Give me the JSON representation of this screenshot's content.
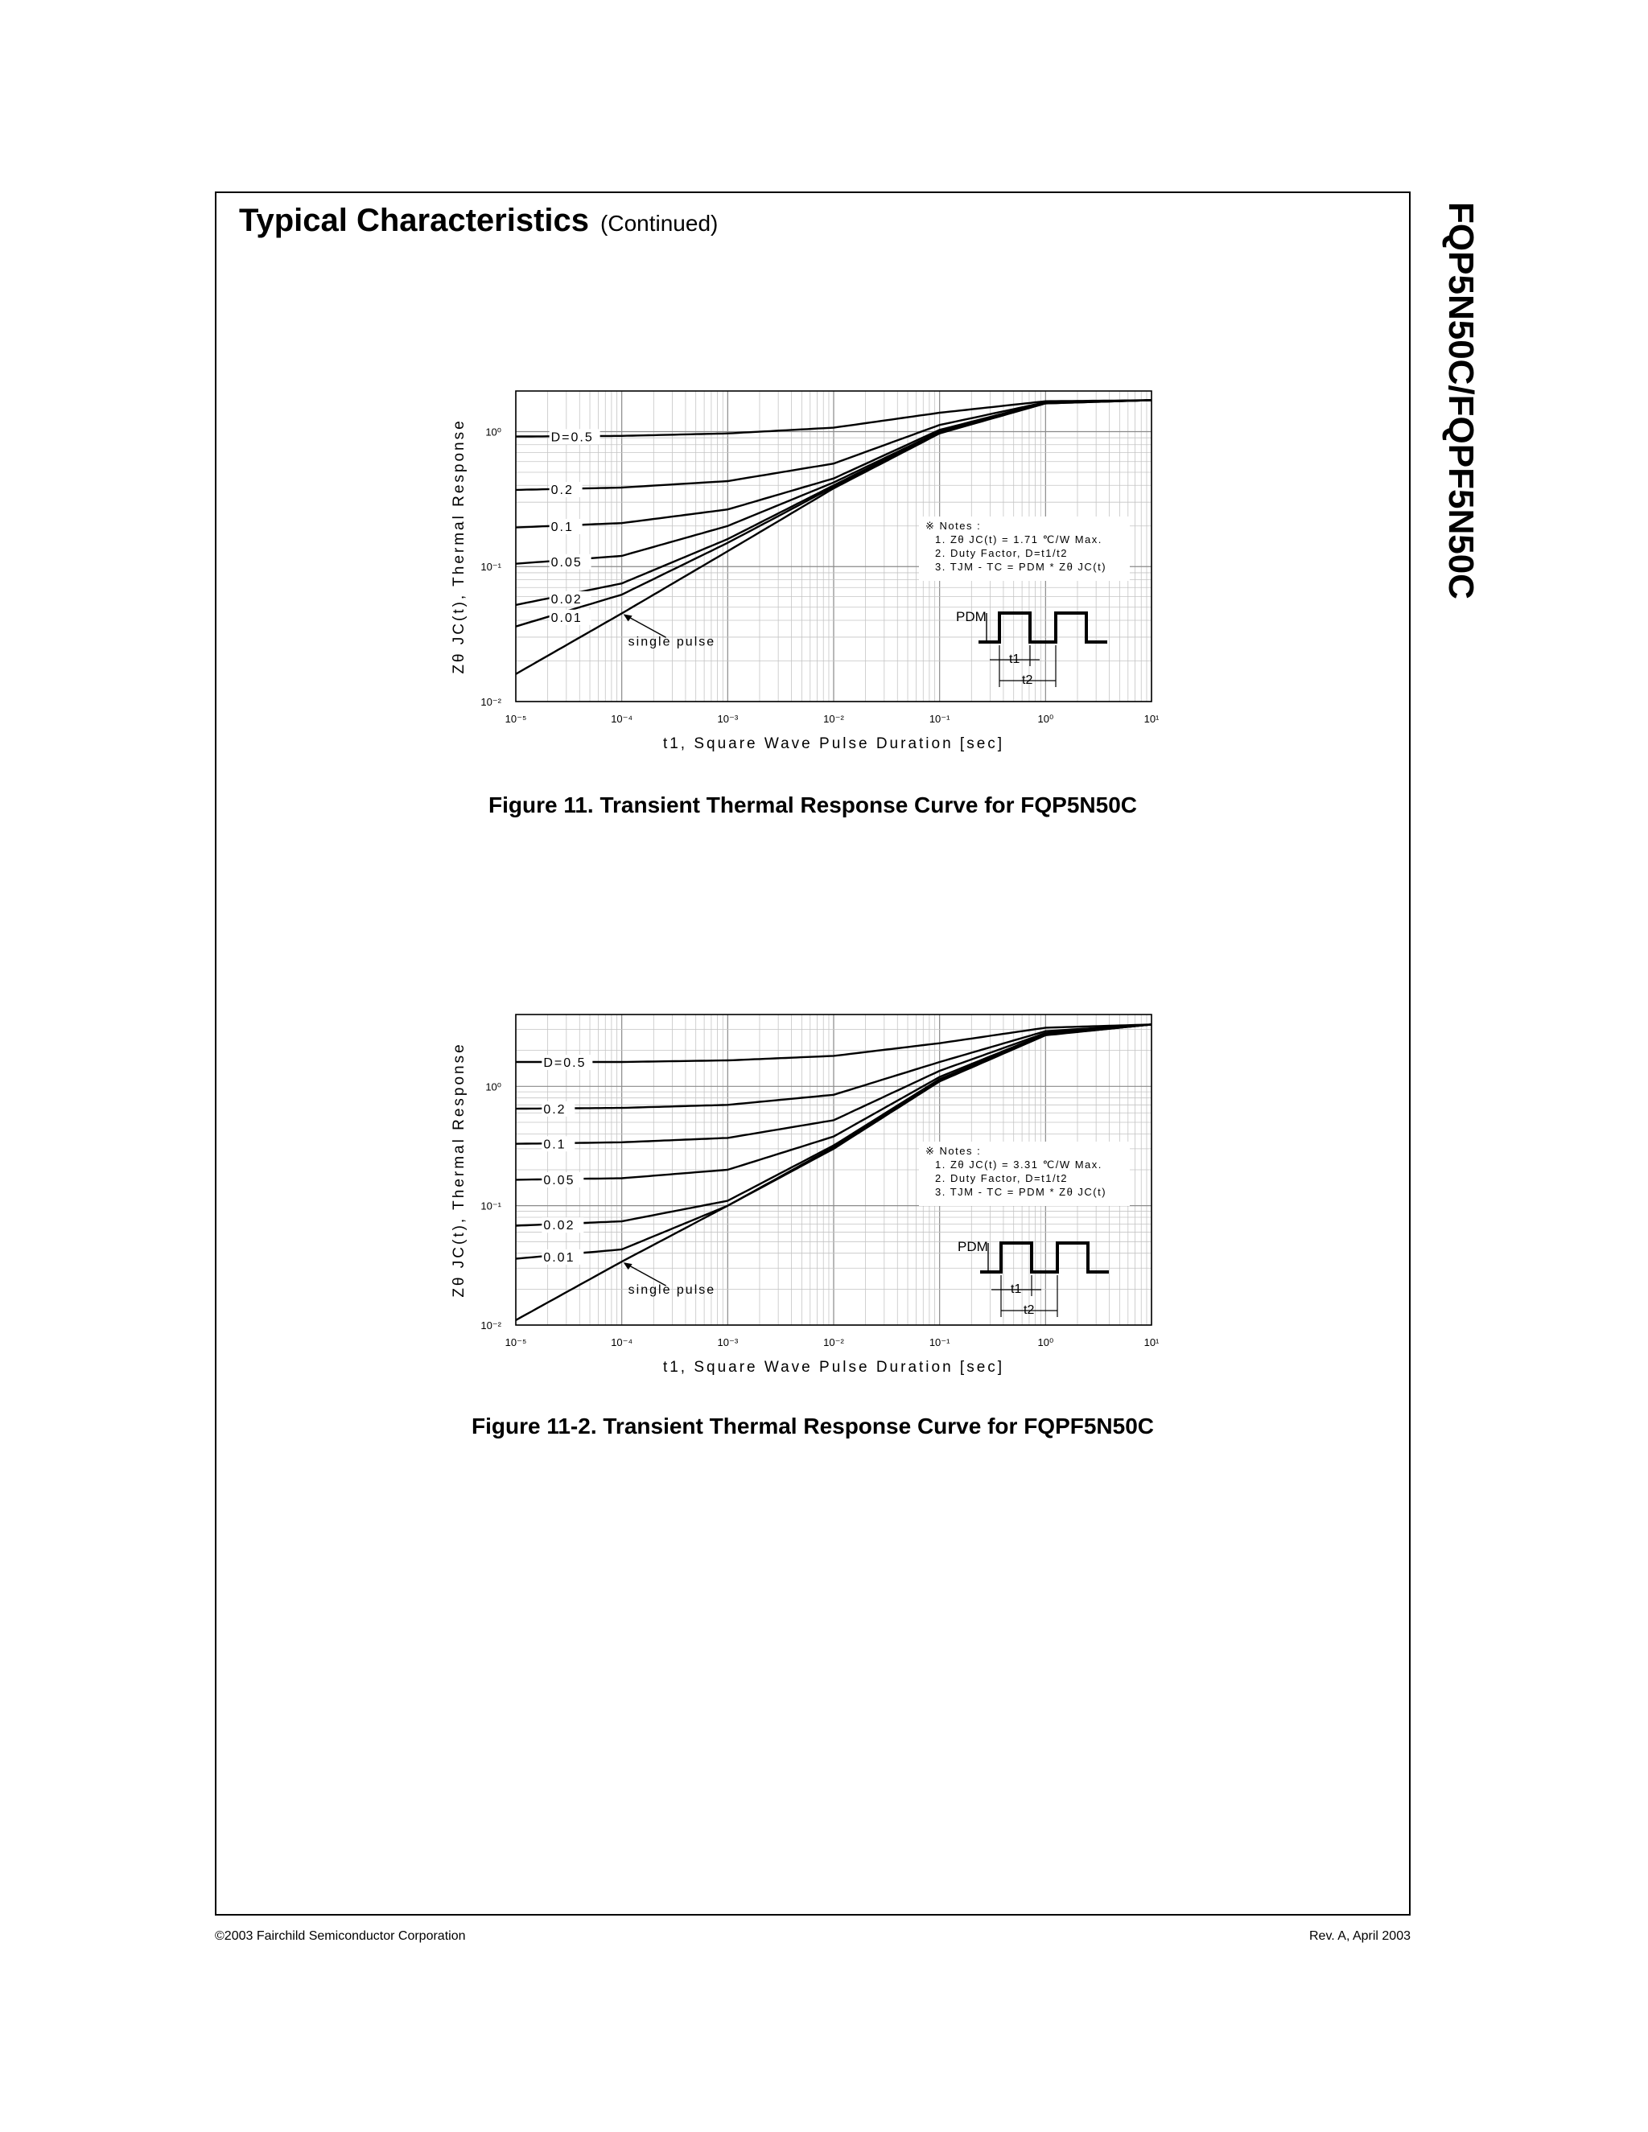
{
  "page": {
    "section_title": "Typical Characteristics",
    "section_subtitle": "(Continued)",
    "side_title": "FQP5N50C/FQPF5N50C",
    "footer_left": "©2003 Fairchild Semiconductor Corporation",
    "footer_right": "Rev. A, April 2003"
  },
  "captions": [
    "Figure 11. Transient Thermal Response Curve for FQP5N50C",
    "Figure 11-2. Transient Thermal Response Curve for FQPF5N50C"
  ],
  "chart_data": [
    {
      "type": "line",
      "x_scale": "log",
      "y_scale": "log",
      "xlim": [
        1e-05,
        10
      ],
      "ylim": [
        0.01,
        2
      ],
      "grid": true,
      "xlabel": "t1, Square Wave Pulse Duration [sec]",
      "ylabel": "Zθ JC(t), Thermal Response",
      "x_ticks": [
        "10⁻⁵",
        "10⁻⁴",
        "10⁻³",
        "10⁻²",
        "10⁻¹",
        "10⁰",
        "10¹"
      ],
      "y_ticks": [
        "10⁻²",
        "10⁻¹",
        "10⁰"
      ],
      "notes": [
        "※  Notes :",
        "1. Zθ JC(t) = 1.71 ℃/W Max.",
        "2. Duty Factor, D=t1/t2",
        "3. TJM - TC = PDM * Zθ JC(t)"
      ],
      "pulse_labels": {
        "pdm": "PDM",
        "t1": "t1",
        "t2": "t2"
      },
      "series": [
        {
          "name": "D=0.5",
          "points": [
            [
              1e-05,
              0.92
            ],
            [
              0.0001,
              0.93
            ],
            [
              0.001,
              0.97
            ],
            [
              0.01,
              1.07
            ],
            [
              0.1,
              1.38
            ],
            [
              1,
              1.68
            ],
            [
              10,
              1.71
            ]
          ]
        },
        {
          "name": "0.2",
          "points": [
            [
              1e-05,
              0.37
            ],
            [
              0.0001,
              0.385
            ],
            [
              0.001,
              0.43
            ],
            [
              0.01,
              0.58
            ],
            [
              0.1,
              1.12
            ],
            [
              1,
              1.65
            ],
            [
              10,
              1.71
            ]
          ]
        },
        {
          "name": "0.1",
          "points": [
            [
              1e-05,
              0.195
            ],
            [
              0.0001,
              0.21
            ],
            [
              0.001,
              0.265
            ],
            [
              0.01,
              0.45
            ],
            [
              0.1,
              1.03
            ],
            [
              1,
              1.64
            ],
            [
              10,
              1.71
            ]
          ]
        },
        {
          "name": "0.05",
          "points": [
            [
              1e-05,
              0.105
            ],
            [
              0.0001,
              0.12
            ],
            [
              0.001,
              0.2
            ],
            [
              0.01,
              0.42
            ],
            [
              0.1,
              1.0
            ],
            [
              1,
              1.63
            ],
            [
              10,
              1.71
            ]
          ]
        },
        {
          "name": "0.02",
          "points": [
            [
              1e-05,
              0.052
            ],
            [
              0.0001,
              0.075
            ],
            [
              0.001,
              0.16
            ],
            [
              0.01,
              0.4
            ],
            [
              0.1,
              0.99
            ],
            [
              1,
              1.63
            ],
            [
              10,
              1.71
            ]
          ]
        },
        {
          "name": "0.01",
          "points": [
            [
              1e-05,
              0.036
            ],
            [
              0.0001,
              0.062
            ],
            [
              0.001,
              0.15
            ],
            [
              0.01,
              0.39
            ],
            [
              0.1,
              0.98
            ],
            [
              1,
              1.62
            ],
            [
              10,
              1.71
            ]
          ]
        },
        {
          "name": "single pulse",
          "points": [
            [
              1e-05,
              0.016
            ],
            [
              0.0001,
              0.045
            ],
            [
              0.001,
              0.13
            ],
            [
              0.01,
              0.38
            ],
            [
              0.1,
              0.97
            ],
            [
              1,
              1.62
            ],
            [
              10,
              1.71
            ]
          ]
        }
      ]
    },
    {
      "type": "line",
      "x_scale": "log",
      "y_scale": "log",
      "xlim": [
        1e-05,
        10
      ],
      "ylim": [
        0.01,
        4
      ],
      "grid": true,
      "xlabel": "t1, Square Wave Pulse Duration [sec]",
      "ylabel": "Zθ JC(t), Thermal Response",
      "x_ticks": [
        "10⁻⁵",
        "10⁻⁴",
        "10⁻³",
        "10⁻²",
        "10⁻¹",
        "10⁰",
        "10¹"
      ],
      "y_ticks": [
        "10⁻²",
        "10⁻¹",
        "10⁰"
      ],
      "notes": [
        "※  Notes :",
        "1. Zθ JC(t) = 3.31 ℃/W Max.",
        "2. Duty Factor, D=t1/t2",
        "3. TJM - TC = PDM * Zθ JC(t)"
      ],
      "pulse_labels": {
        "pdm": "PDM",
        "t1": "t1",
        "t2": "t2"
      },
      "series": [
        {
          "name": "D=0.5",
          "points": [
            [
              1e-05,
              1.6
            ],
            [
              0.0001,
              1.6
            ],
            [
              0.001,
              1.65
            ],
            [
              0.01,
              1.8
            ],
            [
              0.1,
              2.3
            ],
            [
              1,
              3.1
            ],
            [
              10,
              3.3
            ]
          ]
        },
        {
          "name": "0.2",
          "points": [
            [
              1e-05,
              0.65
            ],
            [
              0.0001,
              0.66
            ],
            [
              0.001,
              0.7
            ],
            [
              0.01,
              0.85
            ],
            [
              0.1,
              1.6
            ],
            [
              1,
              2.9
            ],
            [
              10,
              3.3
            ]
          ]
        },
        {
          "name": "0.1",
          "points": [
            [
              1e-05,
              0.33
            ],
            [
              0.0001,
              0.34
            ],
            [
              0.001,
              0.37
            ],
            [
              0.01,
              0.52
            ],
            [
              0.1,
              1.35
            ],
            [
              1,
              2.8
            ],
            [
              10,
              3.3
            ]
          ]
        },
        {
          "name": "0.05",
          "points": [
            [
              1e-05,
              0.165
            ],
            [
              0.0001,
              0.17
            ],
            [
              0.001,
              0.2
            ],
            [
              0.01,
              0.38
            ],
            [
              0.1,
              1.2
            ],
            [
              1,
              2.75
            ],
            [
              10,
              3.3
            ]
          ]
        },
        {
          "name": "0.02",
          "points": [
            [
              1e-05,
              0.068
            ],
            [
              0.0001,
              0.074
            ],
            [
              0.001,
              0.11
            ],
            [
              0.01,
              0.32
            ],
            [
              0.1,
              1.15
            ],
            [
              1,
              2.7
            ],
            [
              10,
              3.3
            ]
          ]
        },
        {
          "name": "0.01",
          "points": [
            [
              1e-05,
              0.036
            ],
            [
              0.0001,
              0.043
            ],
            [
              0.001,
              0.1
            ],
            [
              0.01,
              0.31
            ],
            [
              0.1,
              1.12
            ],
            [
              1,
              2.7
            ],
            [
              10,
              3.3
            ]
          ]
        },
        {
          "name": "single pulse",
          "points": [
            [
              1e-05,
              0.011
            ],
            [
              0.0001,
              0.034
            ],
            [
              0.001,
              0.1
            ],
            [
              0.01,
              0.3
            ],
            [
              0.1,
              1.1
            ],
            [
              1,
              2.68
            ],
            [
              10,
              3.3
            ]
          ]
        }
      ]
    }
  ]
}
